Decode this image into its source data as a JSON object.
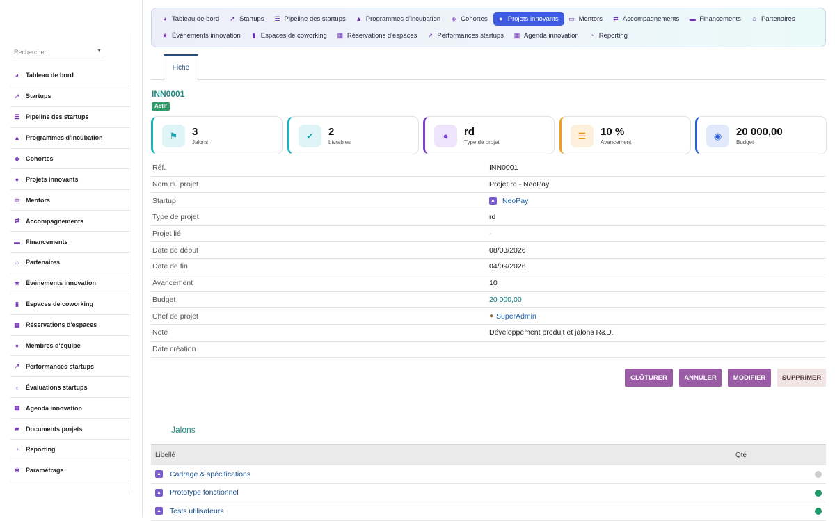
{
  "sidebar": {
    "search_placeholder": "Rechercher",
    "items": [
      {
        "label": "Tableau de bord",
        "icon": "gauge-icon",
        "glyph": "◕"
      },
      {
        "label": "Startups",
        "icon": "rocket-icon",
        "glyph": "➚"
      },
      {
        "label": "Pipeline des startups",
        "icon": "list-icon",
        "glyph": "☰"
      },
      {
        "label": "Programmes d'incubation",
        "icon": "graduation-cap-icon",
        "glyph": "▲"
      },
      {
        "label": "Cohortes",
        "icon": "layers-icon",
        "glyph": "◈"
      },
      {
        "label": "Projets innovants",
        "icon": "lightbulb-icon",
        "glyph": "●"
      },
      {
        "label": "Mentors",
        "icon": "chalkboard-user-icon",
        "glyph": "▭"
      },
      {
        "label": "Accompagnements",
        "icon": "handshake-icon",
        "glyph": "⇄"
      },
      {
        "label": "Financements",
        "icon": "money-bill-icon",
        "glyph": "▬"
      },
      {
        "label": "Partenaires",
        "icon": "bank-icon",
        "glyph": "⌂"
      },
      {
        "label": "Événements innovation",
        "icon": "star-icon",
        "glyph": "★"
      },
      {
        "label": "Espaces de coworking",
        "icon": "building-icon",
        "glyph": "▮"
      },
      {
        "label": "Réservations d'espaces",
        "icon": "calendar-check-icon",
        "glyph": "▦"
      },
      {
        "label": "Membres d'équipe",
        "icon": "users-icon",
        "glyph": "●"
      },
      {
        "label": "Performances startups",
        "icon": "chart-line-icon",
        "glyph": "↗"
      },
      {
        "label": "Évaluations startups",
        "icon": "award-icon",
        "glyph": "♁"
      },
      {
        "label": "Agenda innovation",
        "icon": "calendar-icon",
        "glyph": "▦"
      },
      {
        "label": "Documents projets",
        "icon": "folder-icon",
        "glyph": "▰"
      },
      {
        "label": "Reporting",
        "icon": "pie-chart-icon",
        "glyph": "◔"
      },
      {
        "label": "Paramétrage",
        "icon": "gear-icon",
        "glyph": "✲"
      }
    ]
  },
  "topnav": {
    "row1": [
      {
        "label": "Tableau de bord",
        "icon": "gauge-icon",
        "glyph": "◕"
      },
      {
        "label": "Startups",
        "icon": "rocket-icon",
        "glyph": "➚"
      },
      {
        "label": "Pipeline des startups",
        "icon": "list-icon",
        "glyph": "☰"
      },
      {
        "label": "Programmes d'incubation",
        "icon": "graduation-cap-icon",
        "glyph": "▲"
      },
      {
        "label": "Cohortes",
        "icon": "layers-icon",
        "glyph": "◈"
      },
      {
        "label": "Projets innovants",
        "icon": "lightbulb-icon",
        "glyph": "●",
        "active": true
      },
      {
        "label": "Mentors",
        "icon": "chalkboard-user-icon",
        "glyph": "▭"
      },
      {
        "label": "Accompagnements",
        "icon": "handshake-icon",
        "glyph": "⇄"
      },
      {
        "label": "Financements",
        "icon": "money-bill-icon",
        "glyph": "▬"
      },
      {
        "label": "Partenaires",
        "icon": "bank-icon",
        "glyph": "⌂"
      }
    ],
    "row2": [
      {
        "label": "Événements innovation",
        "icon": "star-icon",
        "glyph": "★"
      },
      {
        "label": "Espaces de coworking",
        "icon": "building-icon",
        "glyph": "▮"
      },
      {
        "label": "Réservations d'espaces",
        "icon": "calendar-check-icon",
        "glyph": "▦"
      },
      {
        "label": "Performances startups",
        "icon": "chart-line-icon",
        "glyph": "↗"
      },
      {
        "label": "Agenda innovation",
        "icon": "calendar-icon",
        "glyph": "▦"
      },
      {
        "label": "Reporting",
        "icon": "pie-chart-icon",
        "glyph": "◔"
      }
    ],
    "active_color": "#3d5ae0"
  },
  "tab": {
    "label": "Fiche"
  },
  "record": {
    "ref": "INN0001",
    "status": "Actif"
  },
  "kpis": [
    {
      "value": "3",
      "label": "Jalons",
      "icon": "flag-checkered-icon",
      "glyph": "⚑",
      "accent": "#19b3c2",
      "bg": "#dff4f7",
      "fg": "#19a3b2"
    },
    {
      "value": "2",
      "label": "Livrables",
      "icon": "clipboard-check-icon",
      "glyph": "✔",
      "accent": "#19b3c2",
      "bg": "#dff4f7",
      "fg": "#19a3b2"
    },
    {
      "value": "rd",
      "label": "Type de projet",
      "icon": "lightbulb-icon",
      "glyph": "●",
      "accent": "#7a3fd6",
      "bg": "#eee4fb",
      "fg": "#7a3fd6"
    },
    {
      "value": "10 %",
      "label": "Avancement",
      "icon": "list-check-icon",
      "glyph": "☰",
      "accent": "#f0a020",
      "bg": "#fdf0dc",
      "fg": "#e8961a"
    },
    {
      "value": "20 000,00",
      "label": "Budget",
      "icon": "coins-icon",
      "glyph": "◉",
      "accent": "#2a5fd6",
      "bg": "#e1e9fb",
      "fg": "#2a5fd6"
    }
  ],
  "details": [
    {
      "key": "Réf.",
      "value": "INN0001"
    },
    {
      "key": "Nom du projet",
      "value": "Projet rd - NeoPay"
    },
    {
      "key": "Startup",
      "value": "NeoPay",
      "style": "link",
      "icon": "startup-icon"
    },
    {
      "key": "Type de projet",
      "value": "rd"
    },
    {
      "key": "Projet lié",
      "value": "-",
      "style": "muted"
    },
    {
      "key": "Date de début",
      "value": "08/03/2026"
    },
    {
      "key": "Date de fin",
      "value": "04/09/2026"
    },
    {
      "key": "Avancement",
      "value": "10"
    },
    {
      "key": "Budget",
      "value": "20 000,00",
      "style": "teal"
    },
    {
      "key": "Chef de projet",
      "value": "SuperAdmin",
      "style": "link",
      "icon": "user-icon"
    },
    {
      "key": "Note",
      "value": "Développement produit et jalons R&D."
    },
    {
      "key": "Date création",
      "value": ""
    }
  ],
  "actions": {
    "close": "CLÔTURER",
    "cancel": "ANNULER",
    "edit": "MODIFIER",
    "delete": "SUPPRIMER"
  },
  "jalons": {
    "title": "Jalons",
    "columns": {
      "label": "Libellé",
      "qty": "Qté"
    },
    "rows": [
      {
        "label": "Cadrage & spécifications",
        "status_color": "#cccccc"
      },
      {
        "label": "Prototype fonctionnel",
        "status_color": "#1f9a6a"
      },
      {
        "label": "Tests utilisateurs",
        "status_color": "#1f9a6a"
      }
    ]
  }
}
